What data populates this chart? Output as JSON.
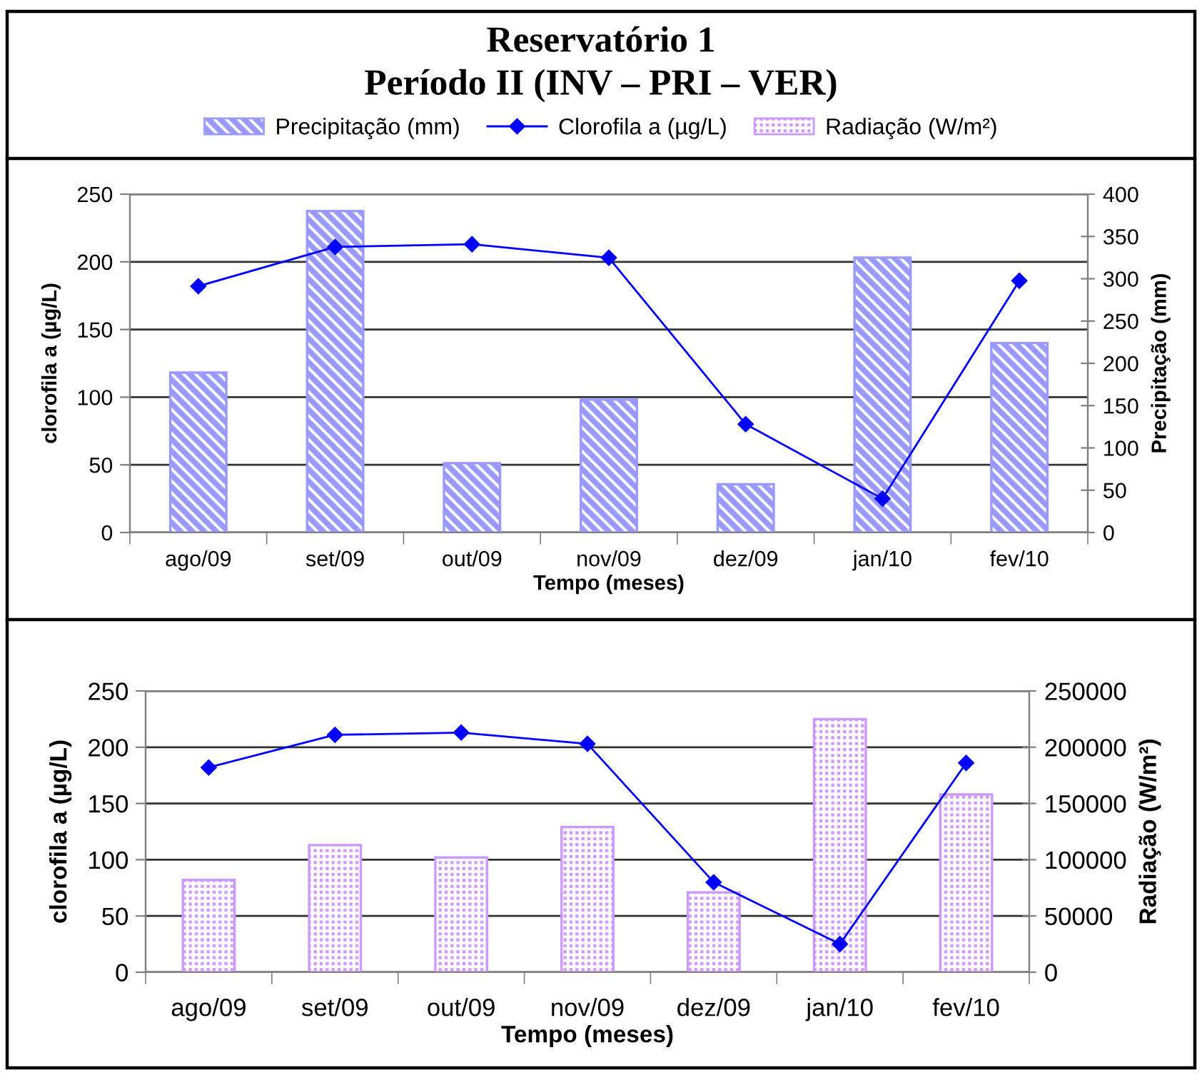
{
  "chart_data": [
    {
      "type": "bar",
      "title": "Reservatório 1",
      "subtitle": "Período II (INV – PRI – VER)",
      "categories": [
        "ago/09",
        "set/09",
        "out/09",
        "nov/09",
        "dez/09",
        "jan/10",
        "fev/10"
      ],
      "xlabel": "Tempo (meses)",
      "ylabel": "clorofila a (µg/L)",
      "y2label": "Precipitação (mm)",
      "ylim": [
        0,
        250
      ],
      "yticks": [
        0,
        50,
        100,
        150,
        200,
        250
      ],
      "y2lim": [
        0,
        400
      ],
      "y2ticks": [
        0,
        50,
        100,
        150,
        200,
        250,
        300,
        350,
        400
      ],
      "grid": "y",
      "legend": "top",
      "marker": "diamond",
      "series": [
        {
          "name": "Precipitação (mm)",
          "axis": "y2",
          "color": "#9999ff",
          "values": [
            189,
            380,
            82,
            157,
            57,
            325,
            224
          ]
        },
        {
          "name": "Clorofila a (µg/L)",
          "type": "line",
          "color": "#0000ff",
          "values": [
            182,
            211,
            213,
            203,
            80,
            25,
            186
          ]
        }
      ]
    },
    {
      "type": "bar",
      "categories": [
        "ago/09",
        "set/09",
        "out/09",
        "nov/09",
        "dez/09",
        "jan/10",
        "fev/10"
      ],
      "xlabel": "Tempo (meses)",
      "ylabel": "clorofila a (µg/L)",
      "y2label": "Radiação (W/m²)",
      "ylim": [
        0,
        250
      ],
      "yticks": [
        0,
        50,
        100,
        150,
        200,
        250
      ],
      "y2lim": [
        0,
        250000
      ],
      "y2ticks": [
        0,
        50000,
        100000,
        150000,
        200000,
        250000
      ],
      "grid": "y",
      "legend": "top",
      "marker": "diamond",
      "series": [
        {
          "name": "Radiação (W/m²)",
          "axis": "y2",
          "color": "#cc99ff",
          "values": [
            82000,
            113000,
            102000,
            129000,
            71000,
            225000,
            158000
          ]
        },
        {
          "name": "Clorofila a (µg/L)",
          "type": "line",
          "color": "#0000ff",
          "values": [
            182,
            211,
            213,
            203,
            80,
            25,
            186
          ]
        }
      ]
    }
  ]
}
